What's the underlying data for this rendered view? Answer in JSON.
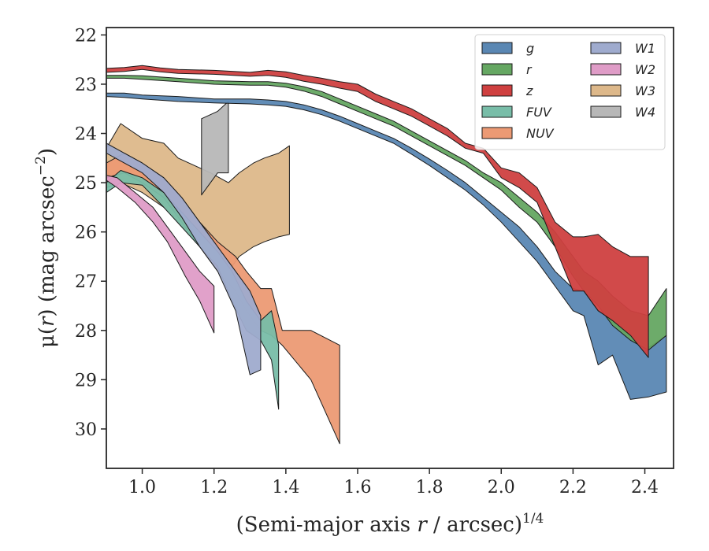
{
  "chart_data": {
    "type": "area",
    "title": "",
    "xlabel": {
      "pre": "(Semi-major axis ",
      "var": "r",
      "post": " / arcsec)",
      "exp": "1/4"
    },
    "ylabel": {
      "pre": "μ(",
      "var": "r",
      "post": ") (mag arcsec",
      "exp": "−2",
      "close": ")"
    },
    "xlim": [
      0.9,
      2.48
    ],
    "ylim": [
      30.8,
      21.85
    ],
    "y_inverted": true,
    "grid": false,
    "legend_position": "top-right",
    "xticks": [
      {
        "value": 1.0,
        "label": "1.0"
      },
      {
        "value": 1.2,
        "label": "1.2"
      },
      {
        "value": 1.4,
        "label": "1.4"
      },
      {
        "value": 1.6,
        "label": "1.6"
      },
      {
        "value": 1.8,
        "label": "1.8"
      },
      {
        "value": 2.0,
        "label": "2.0"
      },
      {
        "value": 2.2,
        "label": "2.2"
      },
      {
        "value": 2.4,
        "label": "2.4"
      }
    ],
    "yticks": [
      {
        "value": 22,
        "label": "22"
      },
      {
        "value": 23,
        "label": "23"
      },
      {
        "value": 24,
        "label": "24"
      },
      {
        "value": 25,
        "label": "25"
      },
      {
        "value": 26,
        "label": "26"
      },
      {
        "value": 27,
        "label": "27"
      },
      {
        "value": 28,
        "label": "28"
      },
      {
        "value": 29,
        "label": "29"
      },
      {
        "value": 30,
        "label": "30"
      }
    ],
    "series": [
      {
        "name": "W3",
        "color": "#ddb88a",
        "x": [
          0.9,
          0.94,
          1.0,
          1.06,
          1.1,
          1.16,
          1.19,
          1.24,
          1.27,
          1.31,
          1.34,
          1.38,
          1.41
        ],
        "y_bright": [
          24.3,
          23.8,
          24.1,
          24.2,
          24.5,
          24.7,
          24.8,
          25.0,
          24.8,
          24.6,
          24.5,
          24.4,
          24.25
        ],
        "y_faint": [
          25.1,
          25.0,
          25.2,
          25.5,
          25.8,
          26.3,
          26.6,
          26.8,
          26.5,
          26.3,
          26.2,
          26.1,
          26.05
        ]
      },
      {
        "name": "NUV",
        "color": "#ec9a74",
        "x": [
          0.9,
          0.95,
          1.0,
          1.06,
          1.11,
          1.16,
          1.21,
          1.26,
          1.29,
          1.33,
          1.36,
          1.39,
          1.47,
          1.55
        ],
        "y_bright": [
          24.6,
          24.4,
          24.6,
          24.9,
          25.3,
          25.8,
          26.2,
          26.5,
          26.8,
          27.15,
          27.15,
          28.0,
          28.0,
          28.3
        ],
        "y_faint": [
          24.9,
          24.8,
          25.0,
          25.3,
          25.8,
          26.3,
          26.8,
          27.2,
          27.6,
          28.0,
          28.1,
          28.3,
          29.0,
          30.3
        ]
      },
      {
        "name": "FUV",
        "color": "#78bda8",
        "x": [
          0.9,
          0.94,
          1.0,
          1.06,
          1.11,
          1.16,
          1.21,
          1.25,
          1.29,
          1.33,
          1.36,
          1.38
        ],
        "y_bright": [
          25.0,
          24.75,
          24.9,
          25.2,
          25.6,
          26.0,
          26.4,
          26.8,
          27.4,
          27.8,
          27.6,
          28.3
        ],
        "y_faint": [
          25.2,
          25.0,
          25.05,
          25.5,
          25.9,
          26.3,
          26.7,
          27.4,
          28.0,
          28.2,
          28.6,
          29.6
        ]
      },
      {
        "name": "W1",
        "color": "#9fabce",
        "x": [
          0.9,
          0.95,
          1.0,
          1.06,
          1.11,
          1.16,
          1.21,
          1.26,
          1.3,
          1.33
        ],
        "y_bright": [
          24.2,
          24.4,
          24.6,
          24.9,
          25.3,
          25.8,
          26.3,
          26.8,
          27.2,
          27.7
        ],
        "y_faint": [
          24.4,
          24.6,
          24.8,
          25.2,
          25.7,
          26.3,
          26.8,
          27.6,
          28.9,
          28.8
        ]
      },
      {
        "name": "W2",
        "color": "#df9cc7",
        "x": [
          0.9,
          0.93,
          0.98,
          1.03,
          1.07,
          1.12,
          1.16,
          1.2
        ],
        "y_bright": [
          24.85,
          24.9,
          25.2,
          25.5,
          25.9,
          26.4,
          26.8,
          27.1
        ],
        "y_faint": [
          24.95,
          25.1,
          25.4,
          25.8,
          26.2,
          26.9,
          27.4,
          28.05
        ]
      },
      {
        "name": "W4",
        "color": "#b7b7b7",
        "x": [
          1.165,
          1.21,
          1.24
        ],
        "y_bright": [
          23.7,
          23.55,
          23.35
        ],
        "y_faint": [
          25.25,
          24.8,
          24.8
        ]
      },
      {
        "name": "g",
        "color": "#5a87b3",
        "x": [
          0.9,
          0.95,
          1.0,
          1.1,
          1.2,
          1.3,
          1.35,
          1.4,
          1.45,
          1.5,
          1.55,
          1.6,
          1.65,
          1.7,
          1.75,
          1.8,
          1.85,
          1.9,
          1.95,
          2.0,
          2.05,
          2.1,
          2.15,
          2.2,
          2.23,
          2.27,
          2.31,
          2.36,
          2.41,
          2.46
        ],
        "y_bright": [
          23.18,
          23.18,
          23.22,
          23.25,
          23.3,
          23.3,
          23.32,
          23.35,
          23.42,
          23.52,
          23.65,
          23.8,
          23.95,
          24.1,
          24.3,
          24.52,
          24.75,
          25.0,
          25.3,
          25.6,
          25.9,
          26.3,
          26.8,
          27.15,
          27.2,
          27.6,
          27.75,
          28.05,
          28.35,
          28.1
        ],
        "y_faint": [
          23.25,
          23.27,
          23.3,
          23.35,
          23.38,
          23.4,
          23.42,
          23.45,
          23.52,
          23.62,
          23.75,
          23.9,
          24.05,
          24.2,
          24.42,
          24.65,
          24.9,
          25.15,
          25.45,
          25.8,
          26.2,
          26.6,
          27.1,
          27.6,
          27.7,
          28.7,
          28.5,
          29.4,
          29.35,
          29.25
        ]
      },
      {
        "name": "r",
        "color": "#65a762",
        "x": [
          0.9,
          0.95,
          1.0,
          1.1,
          1.2,
          1.3,
          1.35,
          1.4,
          1.45,
          1.5,
          1.55,
          1.6,
          1.65,
          1.7,
          1.75,
          1.8,
          1.85,
          1.9,
          1.95,
          2.0,
          2.05,
          2.1,
          2.15,
          2.2,
          2.23,
          2.27,
          2.31,
          2.36,
          2.41,
          2.46
        ],
        "y_bright": [
          22.82,
          22.82,
          22.83,
          22.88,
          22.93,
          22.95,
          22.95,
          22.98,
          23.05,
          23.15,
          23.3,
          23.45,
          23.6,
          23.75,
          23.95,
          24.15,
          24.35,
          24.55,
          24.8,
          25.0,
          25.3,
          25.6,
          26.0,
          26.5,
          26.8,
          27.0,
          27.3,
          27.6,
          27.7,
          27.15
        ],
        "y_faint": [
          22.88,
          22.88,
          22.9,
          22.95,
          23.0,
          23.02,
          23.02,
          23.06,
          23.14,
          23.25,
          23.4,
          23.55,
          23.7,
          23.85,
          24.05,
          24.25,
          24.45,
          24.65,
          24.9,
          25.15,
          25.5,
          25.8,
          26.3,
          26.9,
          27.2,
          27.5,
          27.9,
          28.2,
          28.4,
          28.1
        ]
      },
      {
        "name": "z",
        "color": "#cf4040",
        "x": [
          0.9,
          0.95,
          1.0,
          1.05,
          1.1,
          1.2,
          1.3,
          1.35,
          1.4,
          1.45,
          1.5,
          1.55,
          1.6,
          1.65,
          1.7,
          1.75,
          1.8,
          1.85,
          1.9,
          1.95,
          2.0,
          2.05,
          2.1,
          2.15,
          2.2,
          2.23,
          2.27,
          2.31,
          2.36,
          2.41
        ],
        "y_bright": [
          22.68,
          22.66,
          22.62,
          22.67,
          22.7,
          22.72,
          22.76,
          22.72,
          22.75,
          22.82,
          22.88,
          22.95,
          23.0,
          23.2,
          23.35,
          23.5,
          23.7,
          23.9,
          24.2,
          24.3,
          24.7,
          24.8,
          25.1,
          25.8,
          26.1,
          26.1,
          26.05,
          26.3,
          26.5,
          26.5
        ],
        "y_faint": [
          22.76,
          22.74,
          22.7,
          22.75,
          22.78,
          22.8,
          22.84,
          22.82,
          22.86,
          22.94,
          23.0,
          23.08,
          23.15,
          23.35,
          23.5,
          23.65,
          23.85,
          24.05,
          24.3,
          24.4,
          24.9,
          25.1,
          25.4,
          26.3,
          27.2,
          27.2,
          27.6,
          27.8,
          28.1,
          28.55
        ]
      }
    ],
    "legend": {
      "columns": [
        [
          "g",
          "r",
          "z",
          "FUV",
          "NUV"
        ],
        [
          "W1",
          "W2",
          "W3",
          "W4"
        ]
      ]
    }
  }
}
